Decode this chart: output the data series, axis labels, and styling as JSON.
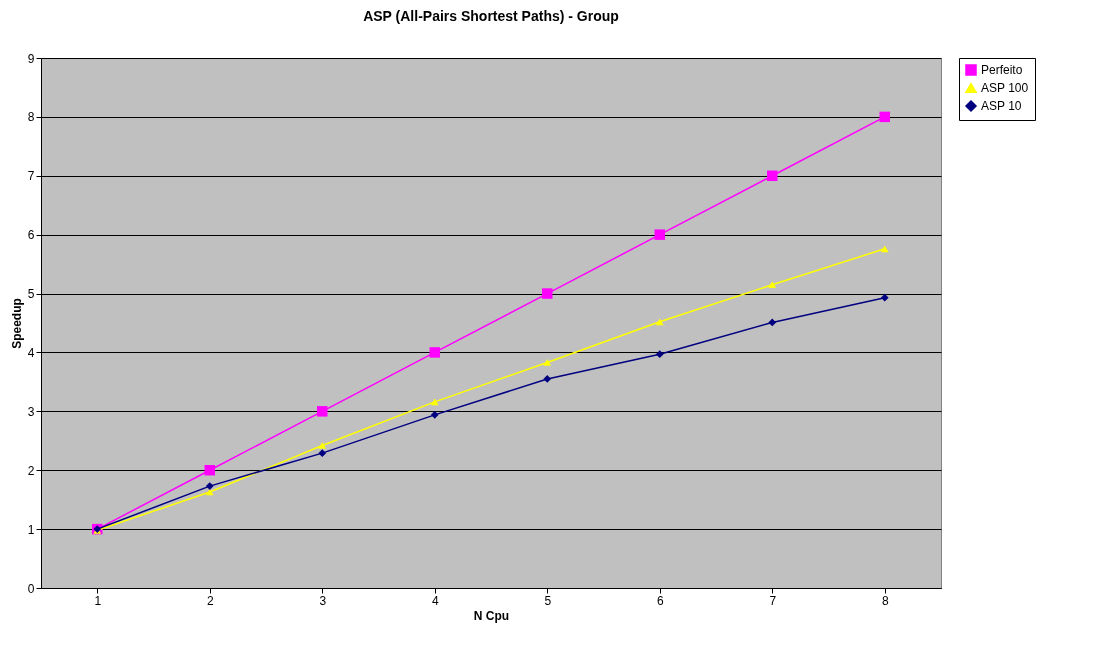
{
  "chart_data": {
    "type": "line",
    "title": "ASP (All-Pairs Shortest Paths) - Group",
    "xlabel": "N Cpu",
    "ylabel": "Speedup",
    "categories": [
      "1",
      "2",
      "3",
      "4",
      "5",
      "6",
      "7",
      "8"
    ],
    "series": [
      {
        "name": "Perfeito",
        "color": "#ff00ff",
        "marker": "square",
        "values": [
          1,
          2,
          3,
          4,
          5,
          6,
          7,
          8
        ]
      },
      {
        "name": "ASP 100",
        "color": "#ffff00",
        "marker": "triangle",
        "values": [
          0.98,
          1.63,
          2.42,
          3.16,
          3.83,
          4.52,
          5.15,
          5.76
        ]
      },
      {
        "name": "ASP 10",
        "color": "#000080",
        "marker": "diamond",
        "values": [
          1,
          1.73,
          2.29,
          2.94,
          3.55,
          3.97,
          4.51,
          4.93
        ]
      }
    ],
    "ylim": [
      0,
      9
    ],
    "yticks": [
      0,
      1,
      2,
      3,
      4,
      5,
      6,
      7,
      8,
      9
    ],
    "grid": "y",
    "legend": "right"
  }
}
